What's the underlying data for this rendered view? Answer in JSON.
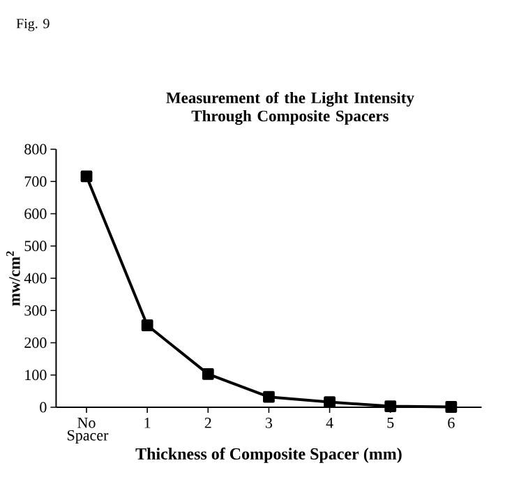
{
  "chart_data": {
    "type": "line",
    "title": "Measurement of the Light Intensity Through Composite Spacers",
    "xlabel": "Thickness of Composite Spacer (mm)",
    "ylabel": "mw/cm$^{2}$",
    "annotations": [
      "Fig. 9"
    ],
    "categories": [
      "No Spacer",
      "1",
      "2",
      "3",
      "4",
      "5",
      "6"
    ],
    "series": [
      {
        "color": "#000000",
        "values": [
          716,
          254,
          103,
          32,
          16,
          3,
          1
        ]
      }
    ],
    "ylim": [
      0,
      800
    ],
    "yticks": [
      0,
      100,
      200,
      300,
      400,
      500,
      600,
      700,
      800
    ],
    "marker": "square",
    "line_style": "solid",
    "grid": false
  }
}
